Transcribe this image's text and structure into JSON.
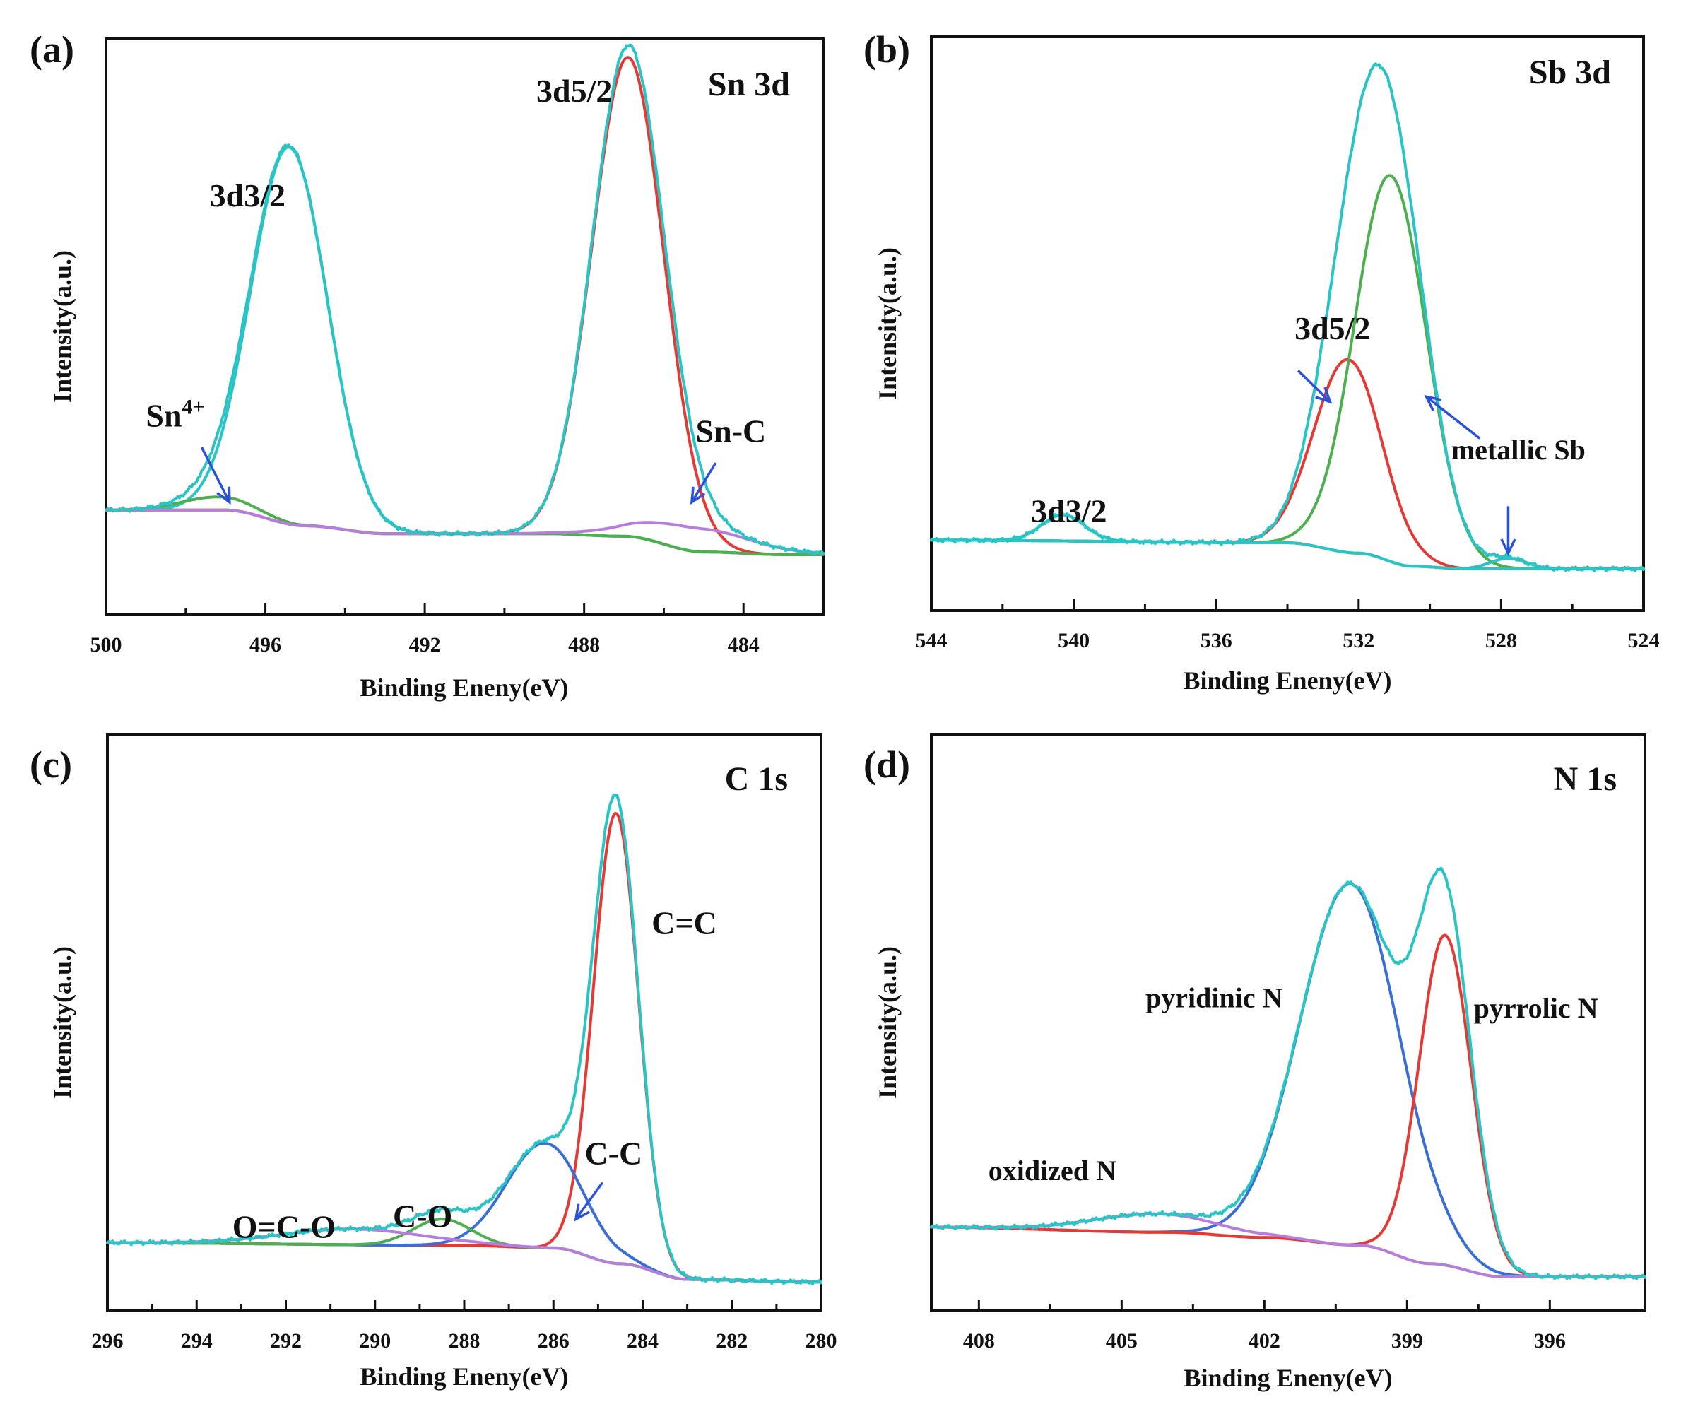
{
  "chart_data": [
    {
      "type": "line",
      "panel": "(a)",
      "title": "Sn 3d",
      "xlabel": "Binding Eneny(eV)",
      "ylabel": "Intensity(a.u.)",
      "xlim": [
        500,
        482
      ],
      "ylim": [
        0,
        1.1
      ],
      "xticks": [
        500,
        496,
        492,
        488,
        484
      ],
      "background": {
        "points": [
          [
            500,
            0.2
          ],
          [
            497,
            0.2
          ],
          [
            495,
            0.17
          ],
          [
            493,
            0.155
          ],
          [
            489,
            0.155
          ],
          [
            487,
            0.15
          ],
          [
            485,
            0.12
          ],
          [
            483,
            0.115
          ],
          [
            482,
            0.115
          ]
        ]
      },
      "peaks": [
        {
          "name": "3d3/2",
          "center": 495.4,
          "height": 0.72,
          "width": 0.95,
          "color": "#2bc4c4"
        },
        {
          "name": "3d5/2",
          "center": 486.9,
          "height": 0.915,
          "width": 0.9,
          "color": "#e53935"
        },
        {
          "name": "Sn4+",
          "center": 497.2,
          "height": 0.025,
          "width": 0.9,
          "color": "#4caf50"
        },
        {
          "name": "Sn-C",
          "center": 485.3,
          "height": 0.045,
          "width": 1.4,
          "color": "#b57edc"
        }
      ],
      "annotations": [
        {
          "text": "3d3/2",
          "x": 497.4,
          "y": 0.78
        },
        {
          "text": "3d5/2",
          "x": 489.2,
          "y": 0.98
        },
        {
          "text": "Sn",
          "sup": "4+",
          "x": 499.0,
          "y": 0.36
        },
        {
          "text": "Sn-C",
          "x": 485.2,
          "y": 0.33
        }
      ]
    },
    {
      "type": "line",
      "panel": "(b)",
      "title": "Sb 3d",
      "xlabel": "Binding Eneny(eV)",
      "ylabel": "Intensity(a.u.)",
      "xlim": [
        544,
        524
      ],
      "ylim": [
        0,
        1.1
      ],
      "xticks": [
        544,
        540,
        536,
        532,
        528,
        524
      ],
      "background": {
        "points": [
          [
            544,
            0.135
          ],
          [
            534,
            0.13
          ],
          [
            532,
            0.11
          ],
          [
            530.5,
            0.085
          ],
          [
            529,
            0.08
          ],
          [
            524,
            0.08
          ]
        ]
      },
      "peaks": [
        {
          "name": "3d5/2",
          "center": 532.3,
          "height": 0.37,
          "width": 0.95,
          "color": "#e53935"
        },
        {
          "name": "metallic Sb",
          "center": 531.1,
          "height": 0.74,
          "width": 1.0,
          "color": "#4caf50"
        },
        {
          "name": "3d3/2",
          "center": 540.3,
          "height": 0.05,
          "width": 0.6,
          "color": "#2bc4c4"
        },
        {
          "name": "metallic Sb (minor)",
          "center": 527.8,
          "height": 0.02,
          "width": 0.5,
          "color": "#2bc4c4"
        }
      ],
      "annotations": [
        {
          "text": "3d5/2",
          "x": 533.8,
          "y": 0.52
        },
        {
          "text": "3d3/2",
          "x": 541.2,
          "y": 0.17
        },
        {
          "text": "metallic Sb",
          "x": 529.4,
          "y": 0.29
        }
      ]
    },
    {
      "type": "line",
      "panel": "(c)",
      "title": "C 1s",
      "xlabel": "Binding Eneny(eV)",
      "ylabel": "Intensity(a.u.)",
      "xlim": [
        296,
        280
      ],
      "ylim": [
        0,
        1.1
      ],
      "xticks": [
        296,
        294,
        292,
        290,
        288,
        286,
        284,
        282,
        280
      ],
      "background": {
        "points": [
          [
            296,
            0.13
          ],
          [
            288,
            0.125
          ],
          [
            286,
            0.12
          ],
          [
            284.5,
            0.09
          ],
          [
            283,
            0.06
          ],
          [
            280,
            0.055
          ]
        ]
      },
      "peaks": [
        {
          "name": "C=C",
          "center": 284.6,
          "height": 0.86,
          "width": 0.5,
          "color": "#e53935"
        },
        {
          "name": "C-C",
          "center": 286.2,
          "height": 0.2,
          "width": 0.85,
          "color": "#3b6fd6"
        },
        {
          "name": "C-O",
          "center": 288.5,
          "height": 0.05,
          "width": 0.65,
          "color": "#4caf50"
        },
        {
          "name": "O=C-O",
          "center": 290.5,
          "height": 0.03,
          "width": 1.6,
          "color": "#b57edc"
        }
      ],
      "annotations": [
        {
          "text": "C=C",
          "x": 283.8,
          "y": 0.72
        },
        {
          "text": "C-C",
          "x": 285.3,
          "y": 0.28
        },
        {
          "text": "C-O",
          "x": 289.6,
          "y": 0.16
        },
        {
          "text": "O=C-O",
          "x": 293.2,
          "y": 0.14
        }
      ]
    },
    {
      "type": "line",
      "panel": "(d)",
      "title": "N 1s",
      "xlabel": "Binding Eneny(eV)",
      "ylabel": "Intensity(a.u.)",
      "xlim": [
        409,
        394
      ],
      "ylim": [
        0,
        1.1
      ],
      "xticks": [
        408,
        405,
        402,
        399,
        396
      ],
      "background": {
        "points": [
          [
            409,
            0.16
          ],
          [
            404,
            0.15
          ],
          [
            402,
            0.14
          ],
          [
            400,
            0.125
          ],
          [
            398.5,
            0.09
          ],
          [
            397,
            0.065
          ],
          [
            394,
            0.065
          ]
        ]
      },
      "peaks": [
        {
          "name": "pyridinic N",
          "center": 400.2,
          "height": 0.69,
          "width": 1.05,
          "color": "#3b6fd6"
        },
        {
          "name": "pyrrolic N",
          "center": 398.2,
          "height": 0.63,
          "width": 0.55,
          "color": "#e53935"
        },
        {
          "name": "oxidized N",
          "center": 404.3,
          "height": 0.035,
          "width": 1.3,
          "color": "#b57edc"
        }
      ],
      "annotations": [
        {
          "text": "pyridinic N",
          "x": 404.5,
          "y": 0.58
        },
        {
          "text": "pyrrolic N",
          "x": 397.6,
          "y": 0.56
        },
        {
          "text": "oxidized N",
          "x": 407.8,
          "y": 0.25
        }
      ]
    }
  ],
  "colors": {
    "envelope": "#2bc4c4",
    "background": "#d4a52c",
    "arrow": "#2b50d9",
    "frame": "#111111"
  }
}
